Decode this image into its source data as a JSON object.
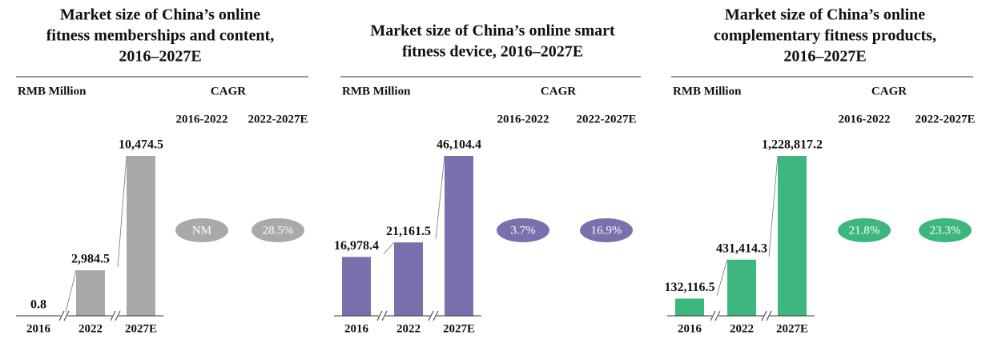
{
  "chart_data": [
    {
      "type": "bar",
      "title": [
        "Market size of China’s online",
        "fitness memberships and content,",
        "2016–2027E"
      ],
      "unit": "RMB Million",
      "cagr_title": "CAGR",
      "cagr_periods": [
        "2016-2022",
        "2022-2027E"
      ],
      "cagr_values": [
        null,
        28.5
      ],
      "cagr_labels": [
        "NM",
        "28.5%"
      ],
      "categories": [
        "2016",
        "2022",
        "2027E"
      ],
      "values": [
        0.8,
        2984.5,
        10474.5
      ],
      "value_labels": [
        "0.8",
        "2,984.5",
        "10,474.5"
      ],
      "color": "#a7a9ab"
    },
    {
      "type": "bar",
      "title": [
        "Market size of China’s online smart",
        "fitness device, 2016–2027E"
      ],
      "unit": "RMB Million",
      "cagr_title": "CAGR",
      "cagr_periods": [
        "2016-2022",
        "2022-2027E"
      ],
      "cagr_values": [
        3.7,
        16.9
      ],
      "cagr_labels": [
        "3.7%",
        "16.9%"
      ],
      "categories": [
        "2016",
        "2022",
        "2027E"
      ],
      "values": [
        16978.4,
        21161.5,
        46104.4
      ],
      "value_labels": [
        "16,978.4",
        "21,161.5",
        "46,104.4"
      ],
      "color": "#7b6fae"
    },
    {
      "type": "bar",
      "title": [
        "Market size of China’s online",
        "complementary fitness products,",
        "2016–2027E"
      ],
      "unit": "RMB Million",
      "cagr_title": "CAGR",
      "cagr_periods": [
        "2016-2022",
        "2022-2027E"
      ],
      "cagr_values": [
        21.8,
        23.3
      ],
      "cagr_labels": [
        "21.8%",
        "23.3%"
      ],
      "categories": [
        "2016",
        "2022",
        "2027E"
      ],
      "values": [
        132116.5,
        431414.3,
        1228817.2
      ],
      "value_labels": [
        "132,116.5",
        "431,414.3",
        "1,228,817.2"
      ],
      "color": "#3db77e"
    }
  ]
}
